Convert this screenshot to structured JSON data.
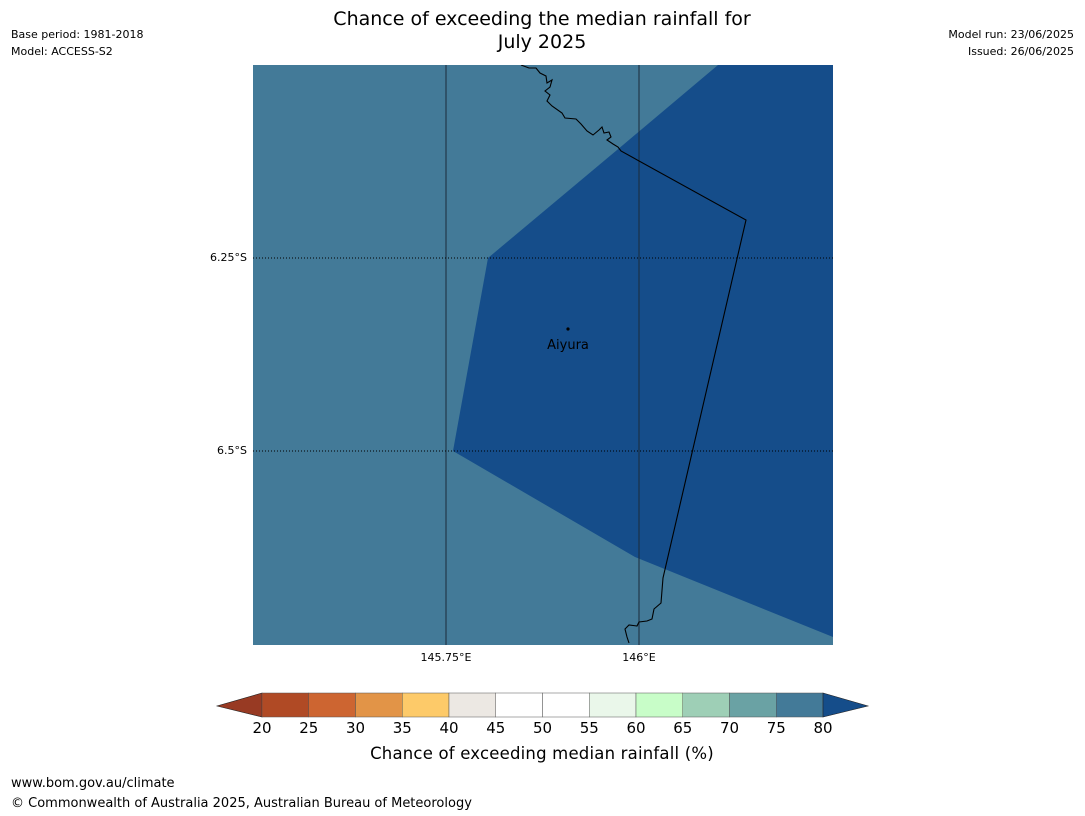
{
  "title_line1": "Chance of exceeding the median rainfall for",
  "title_line2": "July 2025",
  "meta": {
    "base_period": "Base period: 1981-2018",
    "model": "Model: ACCESS-S2",
    "model_run": "Model run: 23/06/2025",
    "issued": "Issued: 26/06/2025"
  },
  "map": {
    "place_label": "Aiyura",
    "lat_labels": [
      "6.25°S",
      "6.5°S"
    ],
    "lon_labels": [
      "145.75°E",
      "146°E"
    ],
    "region_colors": {
      "70-75": "#437a98",
      "75-80": "#154d8a"
    }
  },
  "colorbar": {
    "ticks": [
      "20",
      "25",
      "30",
      "35",
      "40",
      "45",
      "50",
      "55",
      "60",
      "65",
      "70",
      "75",
      "80"
    ],
    "bin_colors": [
      "#b04a25",
      "#cd6531",
      "#e29447",
      "#fdca69",
      "#ece8e3",
      "#ffffff",
      "#ffffff",
      "#eaf7ea",
      "#c8fdc8",
      "#9ecfb6",
      "#6aa2a4",
      "#437a98"
    ],
    "low_extension_color": "#983a23",
    "high_extension_color": "#154d8a",
    "label": "Chance of exceeding median rainfall (%)"
  },
  "footer": {
    "website": "www.bom.gov.au/climate",
    "copyright": "© Commonwealth of Australia 2025, Australian Bureau of Meteorology"
  }
}
